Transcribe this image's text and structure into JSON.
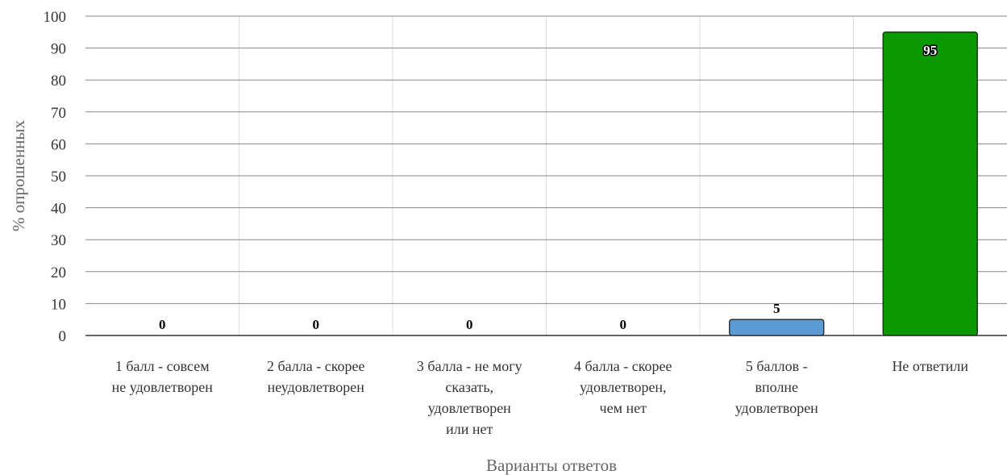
{
  "chart_data": {
    "type": "bar",
    "categories": [
      [
        "1 балл - совсем",
        "не удовлетворен"
      ],
      [
        "2 балла - скорее",
        "неудовлетворен"
      ],
      [
        "3 балла - не могу",
        "сказать,",
        "удовлетворен",
        "или нет"
      ],
      [
        "4 балла - скорее",
        "удовлетворен,",
        "чем нет"
      ],
      [
        "5 баллов -",
        "вполне",
        "удовлетворен"
      ],
      [
        "Не ответили"
      ]
    ],
    "values": [
      0,
      0,
      0,
      0,
      5,
      95
    ],
    "bar_colors": [
      "#5b9bd5",
      "#5b9bd5",
      "#5b9bd5",
      "#5b9bd5",
      "#5b9bd5",
      "#0a9900"
    ],
    "data_labels": [
      "0",
      "0",
      "0",
      "0",
      "5",
      "95"
    ],
    "title": "",
    "xlabel": "Варианты ответов",
    "ylabel": "% опрошенных",
    "ylim": [
      0,
      100
    ],
    "yticks": [
      "0",
      "10",
      "20",
      "30",
      "40",
      "50",
      "60",
      "70",
      "80",
      "90",
      "100"
    ],
    "grid": true,
    "legend": "none"
  }
}
